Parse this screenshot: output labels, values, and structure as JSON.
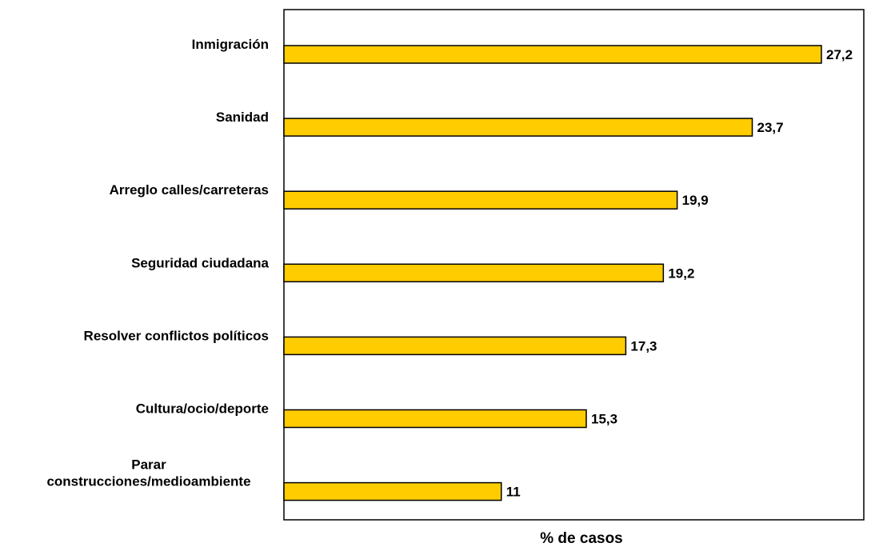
{
  "chart_data": {
    "type": "bar",
    "orientation": "horizontal",
    "categories": [
      [
        "Inmigración"
      ],
      [
        "Sanidad"
      ],
      [
        "Arreglo calles/carreteras"
      ],
      [
        "Seguridad ciudadana"
      ],
      [
        "Resolver conflictos políticos"
      ],
      [
        "Cultura/ocio/deporte"
      ],
      [
        "Parar",
        "construcciones/medioambiente"
      ]
    ],
    "values": [
      27.2,
      23.7,
      19.9,
      19.2,
      17.3,
      15.3,
      11
    ],
    "value_labels": [
      "27,2",
      "23,7",
      "19,9",
      "19,2",
      "17,3",
      "15,3",
      "11"
    ],
    "xlabel": "% de casos",
    "title": "",
    "xlim": [
      0,
      30
    ],
    "grid": false,
    "legend": "none",
    "bar_color": "#FFCC00",
    "bar_edge_color": "#000000"
  }
}
